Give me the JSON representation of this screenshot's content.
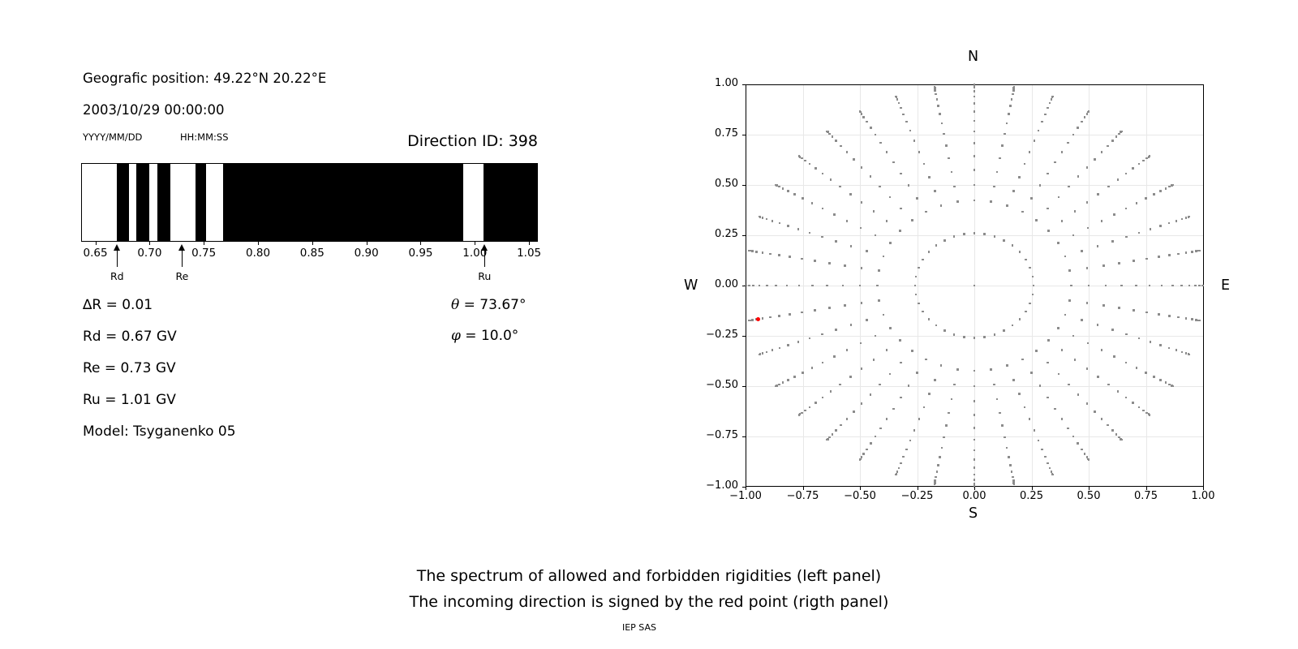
{
  "header": {
    "geo_position": "Geografic position: 49.22°N 20.22°E",
    "datetime": "2003/10/29 00:00:00",
    "date_format": "YYYY/MM/DD",
    "time_format": "HH:MM:SS",
    "direction_id": "Direction ID: 398"
  },
  "info": {
    "rows": [
      "∆R = 0.01",
      "Rd = 0.67 GV",
      "Re = 0.73 GV",
      "Ru = 1.01 GV",
      "Model: Tsyganenko 05"
    ],
    "theta": {
      "symbol": "θ",
      "rest": " = 73.67°"
    },
    "phi": {
      "symbol": "φ",
      "rest": " = 10.0°"
    }
  },
  "captions": {
    "line1": "The spectrum of allowed and forbidden rigidities (left panel)",
    "line2": "The incoming direction is signed by the red point (rigth panel)",
    "credit": "IEP SAS"
  },
  "chart_data": [
    {
      "type": "bar",
      "name": "rigidity-spectrum-barcode",
      "xlim": [
        0.6376,
        1.0574
      ],
      "xticks": {
        "values": [
          0.65,
          0.7,
          0.75,
          0.8,
          0.85,
          0.9,
          0.95,
          1.0,
          1.05
        ],
        "labels": [
          "0.65",
          "0.70",
          "0.75",
          "0.80",
          "0.85",
          "0.90",
          "0.95",
          "1.00",
          "1.05"
        ]
      },
      "black_bands": [
        [
          0.67,
          0.681
        ],
        [
          0.688,
          0.7
        ],
        [
          0.707,
          0.719
        ],
        [
          0.742,
          0.752
        ],
        [
          0.768,
          0.989
        ],
        [
          1.008,
          1.0574
        ]
      ],
      "band_color": "#000000",
      "background": "#ffffff",
      "markers": [
        {
          "label": "Rd",
          "x": 0.67
        },
        {
          "label": "Re",
          "x": 0.73
        },
        {
          "label": "Ru",
          "x": 1.009
        }
      ],
      "cutoffs": {
        "delta_R": 0.01,
        "Rd_GV": 0.67,
        "Re_GV": 0.73,
        "Ru_GV": 1.01
      }
    },
    {
      "type": "scatter",
      "name": "incoming-direction-grid",
      "xlim": [
        -1.0,
        1.0
      ],
      "ylim": [
        -1.0,
        1.0
      ],
      "xticks": {
        "values": [
          -1.0,
          -0.75,
          -0.5,
          -0.25,
          0.0,
          0.25,
          0.5,
          0.75,
          1.0
        ],
        "labels": [
          "−1.00",
          "−0.75",
          "−0.50",
          "−0.25",
          "0.00",
          "0.25",
          "0.50",
          "0.75",
          "1.00"
        ]
      },
      "yticks": {
        "values": [
          1.0,
          0.75,
          0.5,
          0.25,
          0.0,
          -0.25,
          -0.5,
          -0.75,
          -1.0
        ],
        "labels": [
          "1.00",
          "0.75",
          "0.50",
          "0.25",
          "0.00",
          "−0.25",
          "−0.50",
          "−0.75",
          "−1.00"
        ]
      },
      "grid": true,
      "grid_color": "#e8e8e8",
      "compass": {
        "top": "N",
        "bottom": "S",
        "left": "W",
        "right": "E"
      },
      "dot_color": "#8c8c8c",
      "azimuth_step_deg": 10,
      "zenith_radii": [
        0.259,
        0.423,
        0.5,
        0.574,
        0.643,
        0.707,
        0.766,
        0.819,
        0.866,
        0.906,
        0.94,
        0.966,
        0.985,
        0.996,
        1.0
      ],
      "center_dot": true,
      "red_point": {
        "x": -0.945,
        "y": -0.167,
        "color": "#ff0000"
      }
    }
  ]
}
